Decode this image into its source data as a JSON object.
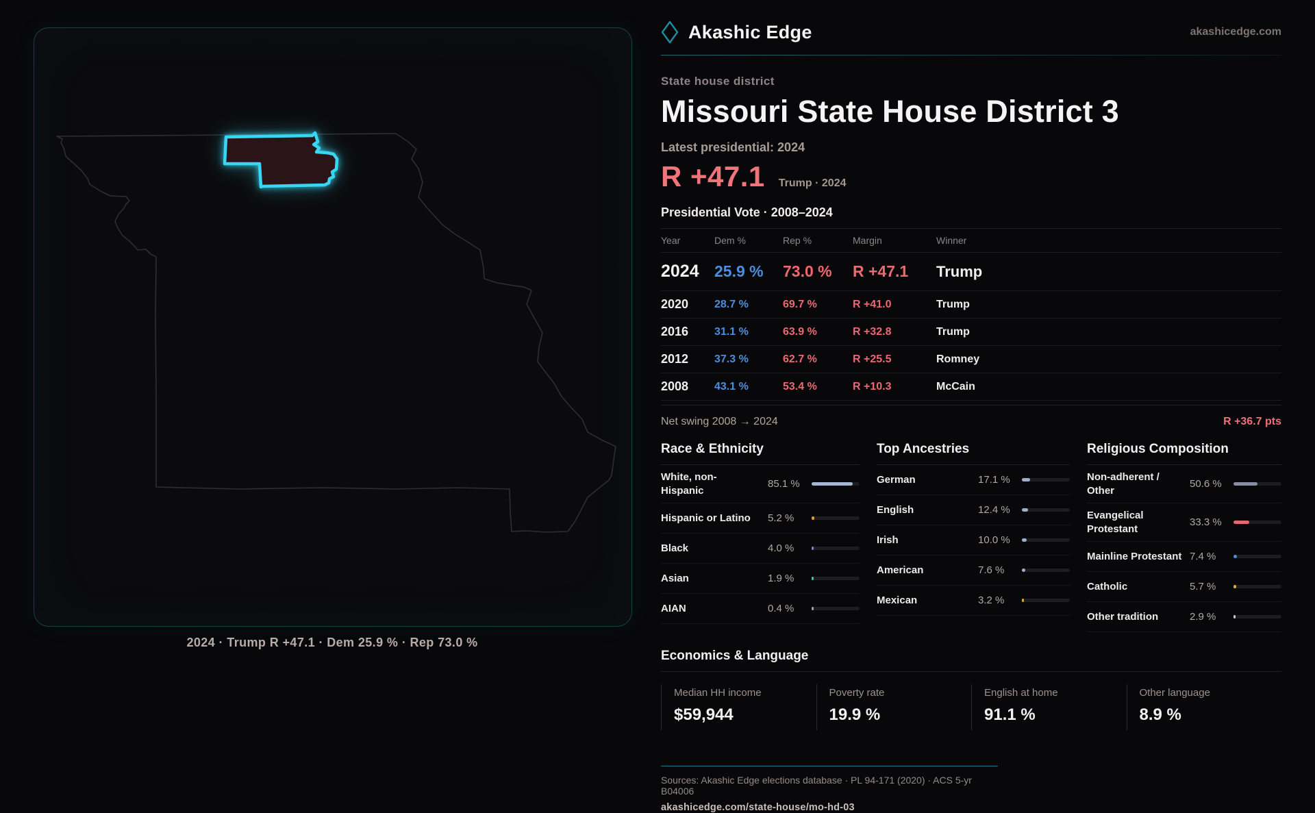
{
  "brand": {
    "name": "Akashic Edge",
    "domain": "akashicedge.com"
  },
  "map": {
    "caption": "2024 · Trump R +47.1 · Dem 25.9 % · Rep 73.0 %"
  },
  "header": {
    "kicker": "State house district",
    "title": "Missouri State House District 3",
    "latest": "Latest presidential: 2024",
    "margin_headline": "R +47.1",
    "margin_note": "Trump · 2024"
  },
  "vote_table": {
    "title": "Presidential Vote · 2008–2024",
    "columns": [
      "Year",
      "Dem %",
      "Rep %",
      "Margin",
      "Winner"
    ],
    "rows": [
      {
        "year": "2024",
        "dem": "25.9 %",
        "rep": "73.0 %",
        "margin": "R +47.1",
        "winner": "Trump",
        "emphasis": "row-big"
      },
      {
        "year": "2020",
        "dem": "28.7 %",
        "rep": "69.7 %",
        "margin": "R +41.0",
        "winner": "Trump",
        "emphasis": "row-std"
      },
      {
        "year": "2016",
        "dem": "31.1 %",
        "rep": "63.9 %",
        "margin": "R +32.8",
        "winner": "Trump",
        "emphasis": "row-std"
      },
      {
        "year": "2012",
        "dem": "37.3 %",
        "rep": "62.7 %",
        "margin": "R +25.5",
        "winner": "Romney",
        "emphasis": "row-std"
      },
      {
        "year": "2008",
        "dem": "43.1 %",
        "rep": "53.4 %",
        "margin": "R +10.3",
        "winner": "McCain",
        "emphasis": "row-std"
      }
    ],
    "net_swing_label": "Net swing 2008 → 2024",
    "net_swing_value": "R +36.7 pts"
  },
  "race": {
    "title": "Race & Ethnicity",
    "rows": [
      {
        "label": "White, non-",
        "label2": "Hispanic",
        "value": "85.1 %",
        "pct": 85.1,
        "color": "#a9b6d3"
      },
      {
        "label": "Hispanic or Latino",
        "label2": "",
        "value": "5.2 %",
        "pct": 5.2,
        "color": "#dd9f31"
      },
      {
        "label": "Black",
        "label2": "",
        "value": "4.0 %",
        "pct": 4.0,
        "color": "#8478ec"
      },
      {
        "label": "Asian",
        "label2": "",
        "value": "1.9 %",
        "pct": 1.9,
        "color": "#35c9a2"
      },
      {
        "label": "AIAN",
        "label2": "",
        "value": "0.4 %",
        "pct": 0.4,
        "color": "#9aa1ac"
      }
    ]
  },
  "ancestries": {
    "title": "Top Ancestries",
    "rows": [
      {
        "label": "German",
        "label2": "",
        "value": "17.1 %",
        "pct": 17.1,
        "color": "#9db0cb"
      },
      {
        "label": "English",
        "label2": "",
        "value": "12.4 %",
        "pct": 12.4,
        "color": "#9db0cb"
      },
      {
        "label": "Irish",
        "label2": "",
        "value": "10.0 %",
        "pct": 10.0,
        "color": "#9db0cb"
      },
      {
        "label": "American",
        "label2": "",
        "value": "7.6 %",
        "pct": 7.6,
        "color": "#9db0cb"
      },
      {
        "label": "Mexican",
        "label2": "",
        "value": "3.2 %",
        "pct": 3.2,
        "color": "#dda431"
      }
    ]
  },
  "religion": {
    "title": "Religious Composition",
    "rows": [
      {
        "label": "Non-adherent /",
        "label2": "Other",
        "value": "50.6 %",
        "pct": 50.6,
        "color": "#878ea1"
      },
      {
        "label": "Evangelical",
        "label2": "Protestant",
        "value": "33.3 %",
        "pct": 33.3,
        "color": "#e2686d"
      },
      {
        "label": "Mainline Protestant",
        "label2": "",
        "value": "7.4 %",
        "pct": 7.4,
        "color": "#4a8fdf"
      },
      {
        "label": "Catholic",
        "label2": "",
        "value": "5.7 %",
        "pct": 5.7,
        "color": "#e2a93b"
      },
      {
        "label": "Other tradition",
        "label2": "",
        "value": "2.9 %",
        "pct": 2.9,
        "color": "#c5c8cf"
      }
    ]
  },
  "economics": {
    "title": "Economics & Language",
    "stats": [
      {
        "label": "Median HH income",
        "value": "$59,944"
      },
      {
        "label": "Poverty rate",
        "value": "19.9 %"
      },
      {
        "label": "English at home",
        "value": "91.1 %"
      },
      {
        "label": "Other language",
        "value": "8.9 %"
      }
    ]
  },
  "footer": {
    "sources": "Sources: Akashic Edge elections database · PL 94-171 (2020) · ACS 5-yr B04006",
    "url": "akashicedge.com/state-house/mo-hd-03"
  },
  "colors": {
    "accent_cyan": "#38d6f2",
    "dem_blue": "#4a8fdf",
    "rep_red": "#ef686f",
    "swing_red": "#f0707a",
    "district_fill": "#2a1418"
  }
}
